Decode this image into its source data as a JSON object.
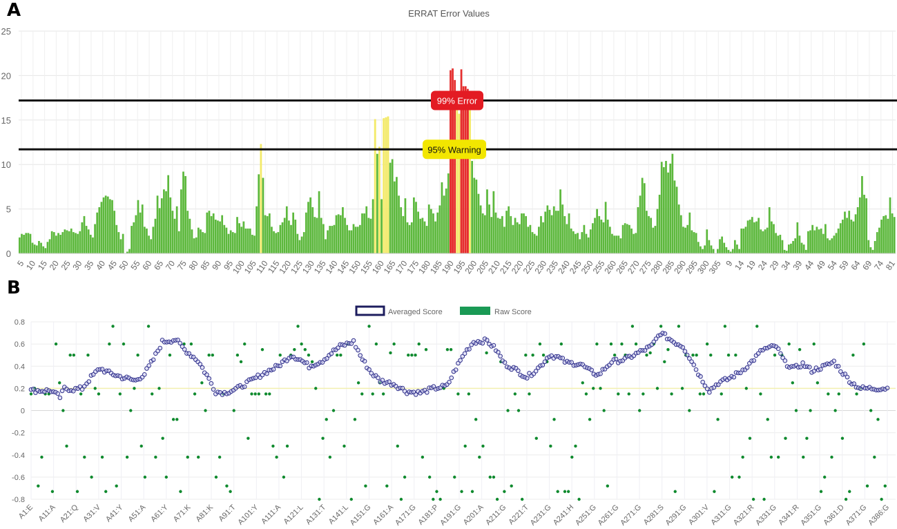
{
  "panels": {
    "a_label": "A",
    "b_label": "B"
  },
  "chart_data": [
    {
      "panel": "A",
      "type": "bar",
      "title": "ERRAT Error Values",
      "xlabel": "",
      "ylabel": "",
      "ylim": [
        0,
        25
      ],
      "yticks": [
        0,
        5,
        10,
        15,
        20,
        25
      ],
      "xtick_labels": [
        "5",
        "10",
        "15",
        "20",
        "25",
        "30",
        "35",
        "40",
        "45",
        "50",
        "55",
        "60",
        "65",
        "70",
        "75",
        "80",
        "85",
        "90",
        "95",
        "100",
        "105",
        "110",
        "115",
        "120",
        "125",
        "130",
        "135",
        "140",
        "145",
        "150",
        "155",
        "160",
        "165",
        "170",
        "175",
        "180",
        "185",
        "190",
        "195",
        "200",
        "205",
        "210",
        "215",
        "220",
        "225",
        "230",
        "235",
        "240",
        "245",
        "250",
        "255",
        "260",
        "265",
        "270",
        "275",
        "280",
        "285",
        "290",
        "295",
        "300",
        "305",
        "9",
        "14",
        "19",
        "24",
        "29",
        "34",
        "39",
        "44",
        "49",
        "54",
        "59",
        "64",
        "69",
        "74",
        "81"
      ],
      "grid": true,
      "threshold_lines": [
        {
          "label": "99% Error",
          "value": 17.2,
          "color": "#e31b23"
        },
        {
          "label": "95% Warning",
          "value": 11.7,
          "color": "#f2e600"
        }
      ],
      "bar_colors": {
        "normal": "#5cb83c",
        "warning": "#f3ea6a",
        "error": "#e52d2d"
      },
      "values": [
        1.8,
        2.2,
        2.1,
        2.3,
        2.3,
        2.2,
        1.2,
        1.0,
        0.9,
        1.4,
        1.2,
        0.8,
        0.6,
        1.3,
        1.6,
        2.5,
        2.4,
        2.0,
        2.3,
        2.1,
        2.4,
        2.7,
        2.6,
        2.5,
        2.8,
        2.4,
        2.3,
        2.2,
        2.5,
        3.5,
        4.2,
        3.1,
        2.7,
        2.1,
        1.8,
        3.3,
        4.6,
        5.2,
        5.8,
        6.3,
        6.5,
        6.4,
        6.1,
        6.0,
        4.8,
        3.2,
        2.4,
        1.6,
        2.2,
        0.0,
        0.2,
        0.5,
        3.1,
        3.5,
        4.3,
        6.0,
        4.6,
        5.5,
        3.0,
        2.8,
        2.0,
        1.6,
        3.0,
        3.9,
        6.5,
        5.1,
        6.2,
        7.2,
        7.0,
        8.8,
        6.3,
        4.8,
        3.9,
        5.3,
        2.5,
        7.2,
        9.2,
        8.7,
        4.8,
        3.9,
        2.7,
        1.7,
        1.8,
        2.9,
        2.7,
        2.4,
        2.3,
        4.6,
        4.8,
        4.2,
        4.5,
        3.8,
        3.7,
        3.6,
        4.3,
        3.2,
        2.9,
        2.2,
        2.6,
        2.4,
        2.3,
        4.1,
        3.4,
        3.0,
        3.6,
        2.8,
        2.8,
        2.8,
        2.1,
        2.0,
        5.3,
        8.9,
        12.3,
        8.5,
        4.3,
        4.2,
        4.5,
        3.0,
        2.5,
        2.3,
        2.4,
        3.2,
        3.5,
        4.0,
        5.3,
        3.7,
        3.2,
        4.6,
        3.8,
        2.2,
        1.5,
        1.9,
        2.4,
        4.6,
        5.8,
        6.3,
        5.2,
        4.1,
        4.0,
        7.0,
        4.0,
        3.3,
        1.6,
        2.6,
        3.1,
        3.1,
        3.2,
        4.3,
        4.4,
        4.3,
        5.2,
        4.0,
        3.2,
        2.6,
        2.6,
        3.3,
        3.0,
        3.0,
        3.2,
        4.5,
        4.5,
        5.3,
        4.0,
        3.9,
        6.1,
        15.1,
        11.2,
        12.0,
        6.1,
        15.2,
        15.3,
        15.4,
        10.2,
        10.6,
        8.1,
        8.6,
        6.5,
        5.2,
        4.2,
        6.2,
        3.5,
        3.2,
        3.5,
        6.3,
        5.8,
        4.7,
        3.9,
        4.0,
        3.6,
        3.1,
        5.5,
        5.0,
        4.5,
        3.6,
        4.6,
        5.4,
        8.0,
        6.5,
        7.3,
        9.0,
        20.6,
        20.8,
        19.5,
        16.4,
        15.7,
        20.7,
        18.8,
        18.8,
        18.5,
        16.5,
        10.4,
        8.5,
        8.3,
        6.7,
        5.4,
        4.5,
        4.3,
        7.2,
        5.5,
        4.1,
        7.0,
        4.6,
        4.0,
        3.9,
        4.2,
        3.0,
        4.8,
        5.3,
        4.2,
        3.2,
        4.0,
        3.5,
        3.3,
        4.5,
        4.5,
        4.2,
        3.0,
        3.2,
        2.4,
        2.2,
        2.0,
        3.0,
        4.2,
        3.5,
        4.7,
        5.4,
        4.9,
        4.3,
        5.3,
        4.8,
        4.8,
        7.2,
        5.5,
        4.2,
        3.3,
        4.5,
        2.8,
        2.5,
        2.2,
        2.3,
        1.6,
        2.4,
        3.2,
        2.2,
        1.8,
        2.7,
        3.4,
        4.0,
        5.0,
        4.2,
        3.8,
        3.5,
        5.8,
        3.8,
        3.0,
        2.2,
        2.0,
        2.0,
        2.0,
        1.7,
        3.2,
        3.4,
        3.3,
        3.2,
        2.8,
        2.2,
        2.3,
        5.2,
        6.5,
        8.5,
        7.9,
        4.8,
        4.2,
        4.0,
        2.9,
        3.1,
        5.0,
        6.6,
        10.3,
        9.7,
        10.4,
        9.1,
        10.1,
        11.2,
        8.2,
        7.5,
        5.5,
        4.3,
        3.0,
        2.9,
        3.2,
        4.6,
        2.6,
        2.4,
        2.3,
        1.3,
        0.8,
        0.5,
        0.9,
        2.7,
        1.5,
        0.9,
        0.5,
        0.0,
        0.5,
        1.6,
        1.9,
        1.2,
        0.7,
        0.4,
        0.2,
        0.5,
        1.5,
        1.0,
        0.5,
        2.8,
        2.8,
        3.0,
        3.7,
        3.8,
        4.1,
        3.5,
        3.6,
        4.0,
        2.7,
        2.5,
        2.7,
        2.9,
        5.2,
        3.6,
        3.3,
        2.3,
        2.0,
        2.1,
        1.5,
        0.4,
        0.3,
        1.0,
        1.1,
        1.4,
        1.7,
        3.5,
        2.0,
        1.2,
        1.0,
        0.4,
        2.5,
        2.6,
        3.2,
        2.6,
        3.0,
        2.7,
        2.8,
        2.2,
        3.3,
        1.7,
        1.5,
        1.7,
        2.0,
        2.3,
        2.8,
        3.4,
        3.8,
        4.7,
        4.0,
        4.8,
        3.8,
        3.6,
        4.4,
        5.2,
        6.3,
        8.7,
        6.6,
        6.2,
        1.5,
        0.7,
        0.4,
        1.4,
        2.4,
        2.9,
        3.8,
        4.2,
        4.3,
        3.9,
        6.3,
        4.5,
        4.1
      ]
    },
    {
      "panel": "B",
      "type": "scatter",
      "title": "",
      "xlabel": "",
      "ylabel": "",
      "ylim": [
        -0.8,
        0.8
      ],
      "yticks": [
        -0.8,
        -0.6,
        -0.4,
        -0.2,
        0,
        0.2,
        0.4,
        0.6,
        0.8
      ],
      "xtick_labels": [
        "A1:E",
        "A11:A",
        "A21:Q",
        "A31:V",
        "A41:Y",
        "A51:A",
        "A61:Y",
        "A71:K",
        "A81:K",
        "A91:T",
        "A101:Y",
        "A111:A",
        "A121:L",
        "A131:T",
        "A141:L",
        "A151:G",
        "A161:A",
        "A171:G",
        "A181:P",
        "A191:G",
        "A201:A",
        "A211:G",
        "A221:T",
        "A231:G",
        "A241:H",
        "A251:G",
        "A261:G",
        "A271:G",
        "A281:S",
        "A291:G",
        "A301:V",
        "A311:G",
        "A321:R",
        "A331:G",
        "A341:R",
        "A351:G",
        "A361:D",
        "A371:G",
        "A386:G"
      ],
      "grid": true,
      "legend": {
        "position": "top-center",
        "entries": [
          "Averaged Score",
          "Raw Score"
        ]
      },
      "reference_line": {
        "value": 0.2,
        "color": "#f2f0b0"
      },
      "series": [
        {
          "name": "Averaged Score",
          "marker": "open-circle",
          "color": "#2e2e8a",
          "anchors": [
            [
              1,
              0.18
            ],
            [
              10,
              0.18
            ],
            [
              14,
              0.12
            ],
            [
              16,
              0.2
            ],
            [
              20,
              0.19
            ],
            [
              24,
              0.2
            ],
            [
              28,
              0.3
            ],
            [
              32,
              0.38
            ],
            [
              36,
              0.34
            ],
            [
              42,
              0.3
            ],
            [
              48,
              0.27
            ],
            [
              52,
              0.33
            ],
            [
              56,
              0.46
            ],
            [
              60,
              0.62
            ],
            [
              66,
              0.64
            ],
            [
              70,
              0.55
            ],
            [
              76,
              0.45
            ],
            [
              80,
              0.32
            ],
            [
              84,
              0.17
            ],
            [
              88,
              0.16
            ],
            [
              94,
              0.2
            ],
            [
              100,
              0.27
            ],
            [
              106,
              0.34
            ],
            [
              112,
              0.4
            ],
            [
              118,
              0.5
            ],
            [
              122,
              0.46
            ],
            [
              126,
              0.4
            ],
            [
              132,
              0.45
            ],
            [
              136,
              0.52
            ],
            [
              140,
              0.58
            ],
            [
              146,
              0.62
            ],
            [
              150,
              0.46
            ],
            [
              154,
              0.34
            ],
            [
              158,
              0.27
            ],
            [
              164,
              0.24
            ],
            [
              170,
              0.17
            ],
            [
              176,
              0.16
            ],
            [
              182,
              0.2
            ],
            [
              188,
              0.22
            ],
            [
              192,
              0.38
            ],
            [
              196,
              0.52
            ],
            [
              200,
              0.62
            ],
            [
              206,
              0.63
            ],
            [
              210,
              0.55
            ],
            [
              214,
              0.42
            ],
            [
              218,
              0.38
            ],
            [
              224,
              0.3
            ],
            [
              230,
              0.4
            ],
            [
              234,
              0.5
            ],
            [
              238,
              0.48
            ],
            [
              242,
              0.43
            ],
            [
              248,
              0.42
            ],
            [
              252,
              0.36
            ],
            [
              256,
              0.32
            ],
            [
              262,
              0.44
            ],
            [
              268,
              0.46
            ],
            [
              274,
              0.52
            ],
            [
              280,
              0.58
            ],
            [
              284,
              0.7
            ],
            [
              290,
              0.62
            ],
            [
              294,
              0.58
            ],
            [
              298,
              0.45
            ],
            [
              302,
              0.3
            ],
            [
              306,
              0.18
            ],
            [
              310,
              0.25
            ],
            [
              314,
              0.28
            ],
            [
              320,
              0.35
            ],
            [
              324,
              0.42
            ],
            [
              330,
              0.55
            ],
            [
              336,
              0.58
            ],
            [
              340,
              0.43
            ],
            [
              344,
              0.38
            ],
            [
              348,
              0.42
            ],
            [
              352,
              0.36
            ],
            [
              358,
              0.4
            ],
            [
              362,
              0.44
            ],
            [
              366,
              0.34
            ],
            [
              370,
              0.25
            ],
            [
              374,
              0.2
            ],
            [
              386,
              0.2
            ]
          ]
        },
        {
          "name": "Raw Score",
          "marker": "filled-dot",
          "color": "#0f8a2e",
          "points_note": "scattered raw values at discrete levels ~{-0.8,-0.73,-0.68,-0.42,-0.25,0,0.15,0.2,0.5,0.55,0.6,0.76}"
        }
      ]
    }
  ]
}
